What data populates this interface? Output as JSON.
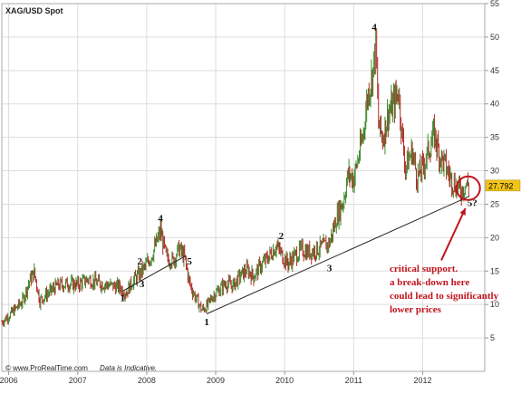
{
  "chart_data": {
    "type": "line",
    "title": "XAG/USD Spot",
    "footer": "© www.ProRealTime.com",
    "footer_note": "Data is Indicative.",
    "ylim": [
      0,
      55
    ],
    "xlim": [
      2005.9,
      2012.9
    ],
    "y_ticks": [
      5,
      10,
      15,
      20,
      25,
      30,
      35,
      40,
      45,
      50,
      55
    ],
    "x_ticks": [
      {
        "label": "2006",
        "value": 2006.0
      },
      {
        "label": "2007",
        "value": 2007.0
      },
      {
        "label": "2008",
        "value": 2008.0
      },
      {
        "label": "2009",
        "value": 2009.0
      },
      {
        "label": "2010",
        "value": 2010.0
      },
      {
        "label": "2011",
        "value": 2011.0
      },
      {
        "label": "2012",
        "value": 2012.0
      }
    ],
    "last_price": "27.792",
    "last_price_value": 27.792,
    "series": [
      {
        "points": [
          [
            2005.9,
            7.4
          ],
          [
            2006.05,
            8.8
          ],
          [
            2006.2,
            10.5
          ],
          [
            2006.3,
            13.5
          ],
          [
            2006.37,
            14.8
          ],
          [
            2006.45,
            10.6
          ],
          [
            2006.55,
            11.5
          ],
          [
            2006.7,
            12.8
          ],
          [
            2006.85,
            13.1
          ],
          [
            2007.0,
            13.0
          ],
          [
            2007.15,
            13.8
          ],
          [
            2007.3,
            13.2
          ],
          [
            2007.45,
            12.9
          ],
          [
            2007.6,
            12.6
          ],
          [
            2007.7,
            11.8
          ],
          [
            2007.8,
            13.5
          ],
          [
            2007.9,
            14.6
          ],
          [
            2008.0,
            16.0
          ],
          [
            2008.08,
            17.5
          ],
          [
            2008.15,
            19.5
          ],
          [
            2008.2,
            21.0
          ],
          [
            2008.28,
            17.2
          ],
          [
            2008.38,
            16.5
          ],
          [
            2008.47,
            18.4
          ],
          [
            2008.55,
            17.0
          ],
          [
            2008.62,
            13.2
          ],
          [
            2008.7,
            11.2
          ],
          [
            2008.8,
            9.2
          ],
          [
            2008.88,
            9.8
          ],
          [
            2008.95,
            11.2
          ],
          [
            2009.05,
            12.2
          ],
          [
            2009.15,
            13.2
          ],
          [
            2009.25,
            12.8
          ],
          [
            2009.35,
            14.2
          ],
          [
            2009.45,
            15.2
          ],
          [
            2009.55,
            14.2
          ],
          [
            2009.65,
            15.8
          ],
          [
            2009.75,
            16.9
          ],
          [
            2009.88,
            18.8
          ],
          [
            2009.97,
            17.2
          ],
          [
            2010.05,
            16.2
          ],
          [
            2010.15,
            17.3
          ],
          [
            2010.25,
            18.2
          ],
          [
            2010.35,
            17.8
          ],
          [
            2010.45,
            18.2
          ],
          [
            2010.55,
            18.6
          ],
          [
            2010.65,
            19.2
          ],
          [
            2010.75,
            23.0
          ],
          [
            2010.85,
            25.5
          ],
          [
            2010.92,
            29.5
          ],
          [
            2011.0,
            28.8
          ],
          [
            2011.07,
            32.0
          ],
          [
            2011.13,
            35.0
          ],
          [
            2011.2,
            41.0
          ],
          [
            2011.28,
            45.0
          ],
          [
            2011.32,
            48.8
          ],
          [
            2011.36,
            37.0
          ],
          [
            2011.42,
            34.8
          ],
          [
            2011.5,
            38.5
          ],
          [
            2011.58,
            40.0
          ],
          [
            2011.65,
            42.0
          ],
          [
            2011.7,
            35.5
          ],
          [
            2011.75,
            30.5
          ],
          [
            2011.85,
            33.0
          ],
          [
            2011.92,
            29.0
          ],
          [
            2012.0,
            30.5
          ],
          [
            2012.1,
            33.5
          ],
          [
            2012.17,
            35.5
          ],
          [
            2012.25,
            32.2
          ],
          [
            2012.32,
            31.0
          ],
          [
            2012.4,
            29.0
          ],
          [
            2012.48,
            27.8
          ],
          [
            2012.55,
            27.0
          ],
          [
            2012.62,
            27.9
          ],
          [
            2012.68,
            27.792
          ]
        ]
      }
    ],
    "trendlines": [
      {
        "from": [
          2007.65,
          12.0
        ],
        "to": [
          2008.57,
          17.3
        ]
      },
      {
        "from": [
          2008.87,
          8.6
        ],
        "to": [
          2012.68,
          26.2
        ]
      }
    ],
    "wave_labels": [
      {
        "text": "1",
        "x": 2007.65,
        "y": 10.5
      },
      {
        "text": "2",
        "x": 2007.9,
        "y": 16.0
      },
      {
        "text": "3",
        "x": 2007.93,
        "y": 12.6
      },
      {
        "text": "4",
        "x": 2008.2,
        "y": 22.4
      },
      {
        "text": "5",
        "x": 2008.62,
        "y": 16.0
      },
      {
        "text": "1",
        "x": 2008.87,
        "y": 6.9
      },
      {
        "text": "2",
        "x": 2009.95,
        "y": 19.8
      },
      {
        "text": "3",
        "x": 2010.65,
        "y": 15.0
      },
      {
        "text": "4",
        "x": 2011.3,
        "y": 51.0
      },
      {
        "text": "5?",
        "x": 2012.72,
        "y": 24.7
      }
    ],
    "support_circle": {
      "x": 2012.66,
      "y": 27.4
    },
    "annotation": {
      "lines": [
        "critical support.",
        "a break-down here",
        "could lead to significantly",
        "lower prices"
      ],
      "arrow_from": [
        2012.27,
        16.6
      ],
      "arrow_to": [
        2012.62,
        24.4
      ]
    },
    "colors": {
      "background": "#ffffff",
      "grid": "#dddddd",
      "axis": "#999999",
      "candle": "#3c8a2a",
      "candle_alt": "#b8282a",
      "trendline": "#222222",
      "annotation": "#c0141c",
      "last_price_box": "#f0c419"
    }
  }
}
